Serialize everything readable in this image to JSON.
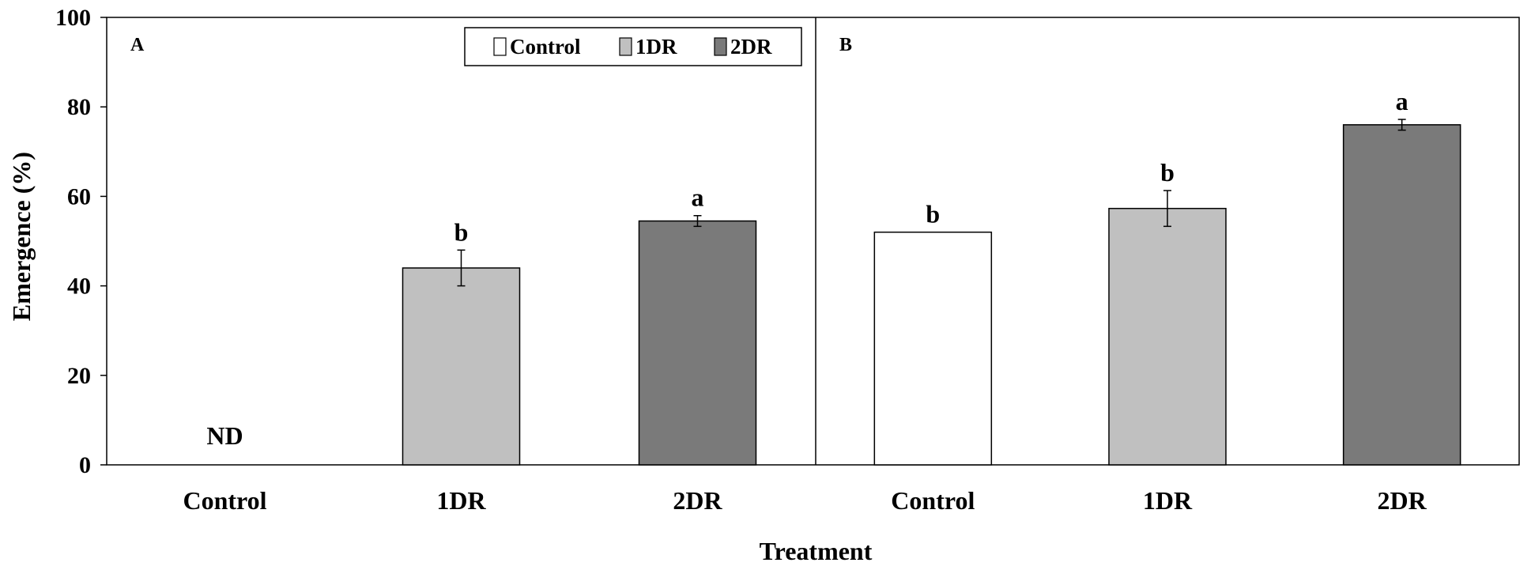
{
  "chart_data": {
    "type": "bar",
    "ylabel": "Emergence (%)",
    "xlabel": "Treatment",
    "ylim": [
      0,
      100
    ],
    "yticks": [
      "0",
      "20",
      "40",
      "60",
      "80",
      "100"
    ],
    "legend": {
      "position": "top-right of panel A",
      "entries": [
        {
          "name": "Control",
          "color": "#ffffff"
        },
        {
          "name": "1DR",
          "color": "#c0c0c0"
        },
        {
          "name": "2DR",
          "color": "#7a7a7a"
        }
      ]
    },
    "panels": [
      {
        "label": "A",
        "categories": [
          "Control",
          "1DR",
          "2DR"
        ],
        "values": [
          null,
          44,
          54.5
        ],
        "errors": [
          null,
          4,
          1.2
        ],
        "letters": [
          "",
          "b",
          "a"
        ],
        "annotations": [
          "ND",
          "",
          ""
        ]
      },
      {
        "label": "B",
        "categories": [
          "Control",
          "1DR",
          "2DR"
        ],
        "values": [
          52,
          57.3,
          76
        ],
        "errors": [
          0,
          4,
          1.2
        ],
        "letters": [
          "b",
          "b",
          "a"
        ],
        "annotations": [
          "",
          "",
          ""
        ]
      }
    ],
    "colors": {
      "Control": "#ffffff",
      "1DR": "#c0c0c0",
      "2DR": "#7a7a7a",
      "outline": "#000000"
    }
  }
}
